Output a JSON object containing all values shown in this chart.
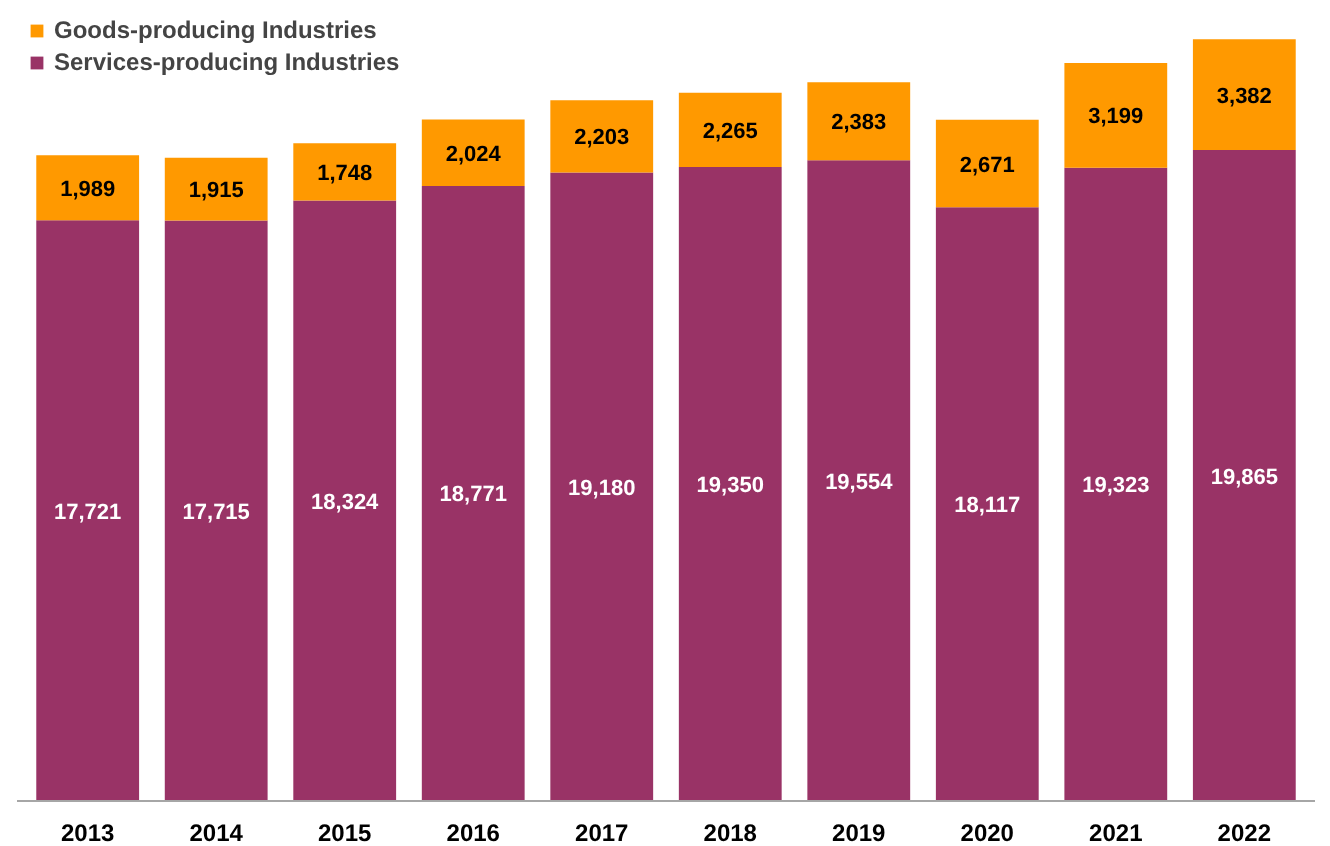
{
  "chart_data": {
    "type": "bar",
    "stacked": true,
    "legend": "top left",
    "grid": false,
    "categories": [
      "2013",
      "2014",
      "2015",
      "2016",
      "2017",
      "2018",
      "2019",
      "2020",
      "2021",
      "2022"
    ],
    "series": [
      {
        "name": "Services-producing Industries",
        "color": "#993366",
        "values": [
          17721,
          17715,
          18324,
          18771,
          19180,
          19350,
          19554,
          18117,
          19323,
          19865
        ],
        "value_labels": [
          "17,721",
          "17,715",
          "18,324",
          "18,771",
          "19,180",
          "19,350",
          "19,554",
          "18,117",
          "19,323",
          "19,865"
        ]
      },
      {
        "name": "Goods-producing Industries",
        "color": "#ff9900",
        "values": [
          1989,
          1915,
          1748,
          2024,
          2203,
          2265,
          2383,
          2671,
          3199,
          3382
        ],
        "value_labels": [
          "1,989",
          "1,915",
          "1,748",
          "2,024",
          "2,203",
          "2,265",
          "2,383",
          "2,671",
          "3,199",
          "3,382"
        ]
      }
    ]
  }
}
